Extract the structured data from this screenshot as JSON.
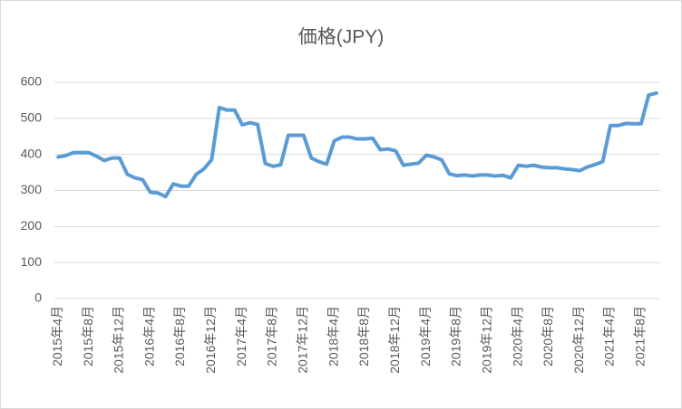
{
  "chart_data": {
    "type": "line",
    "title": "価格(JPY)",
    "categories": [
      "2015年4月",
      null,
      null,
      null,
      "2015年8月",
      null,
      null,
      null,
      "2015年12月",
      null,
      null,
      null,
      "2016年4月",
      null,
      null,
      null,
      "2016年8月",
      null,
      null,
      null,
      "2016年12月",
      null,
      null,
      null,
      "2017年4月",
      null,
      null,
      null,
      "2017年8月",
      null,
      null,
      null,
      "2017年12月",
      null,
      null,
      null,
      "2018年4月",
      null,
      null,
      null,
      "2018年8月",
      null,
      null,
      null,
      "2018年12月",
      null,
      null,
      null,
      "2019年4月",
      null,
      null,
      null,
      "2019年8月",
      null,
      null,
      null,
      "2019年12月",
      null,
      null,
      null,
      "2020年4月",
      null,
      null,
      null,
      "2020年8月",
      null,
      null,
      null,
      "2020年12月",
      null,
      null,
      null,
      "2021年4月",
      null,
      null,
      null,
      "2021年8月",
      null,
      null
    ],
    "series": [
      {
        "name": "価格(JPY)",
        "color": "#5b9bd5",
        "values": [
          393,
          397,
          405,
          405,
          405,
          395,
          383,
          390,
          390,
          345,
          335,
          330,
          295,
          293,
          283,
          318,
          312,
          312,
          345,
          360,
          385,
          530,
          523,
          523,
          482,
          488,
          483,
          375,
          367,
          371,
          453,
          453,
          453,
          390,
          380,
          373,
          438,
          448,
          448,
          443,
          443,
          445,
          413,
          415,
          410,
          370,
          373,
          376,
          398,
          393,
          385,
          346,
          341,
          343,
          340,
          343,
          343,
          340,
          342,
          335,
          370,
          367,
          370,
          365,
          363,
          363,
          360,
          358,
          355,
          365,
          372,
          380,
          480,
          480,
          486,
          485,
          485,
          565,
          570
        ]
      }
    ],
    "ylim": [
      0,
      600
    ],
    "yticks": [
      0,
      100,
      200,
      300,
      400,
      500,
      600
    ],
    "grid": true
  }
}
